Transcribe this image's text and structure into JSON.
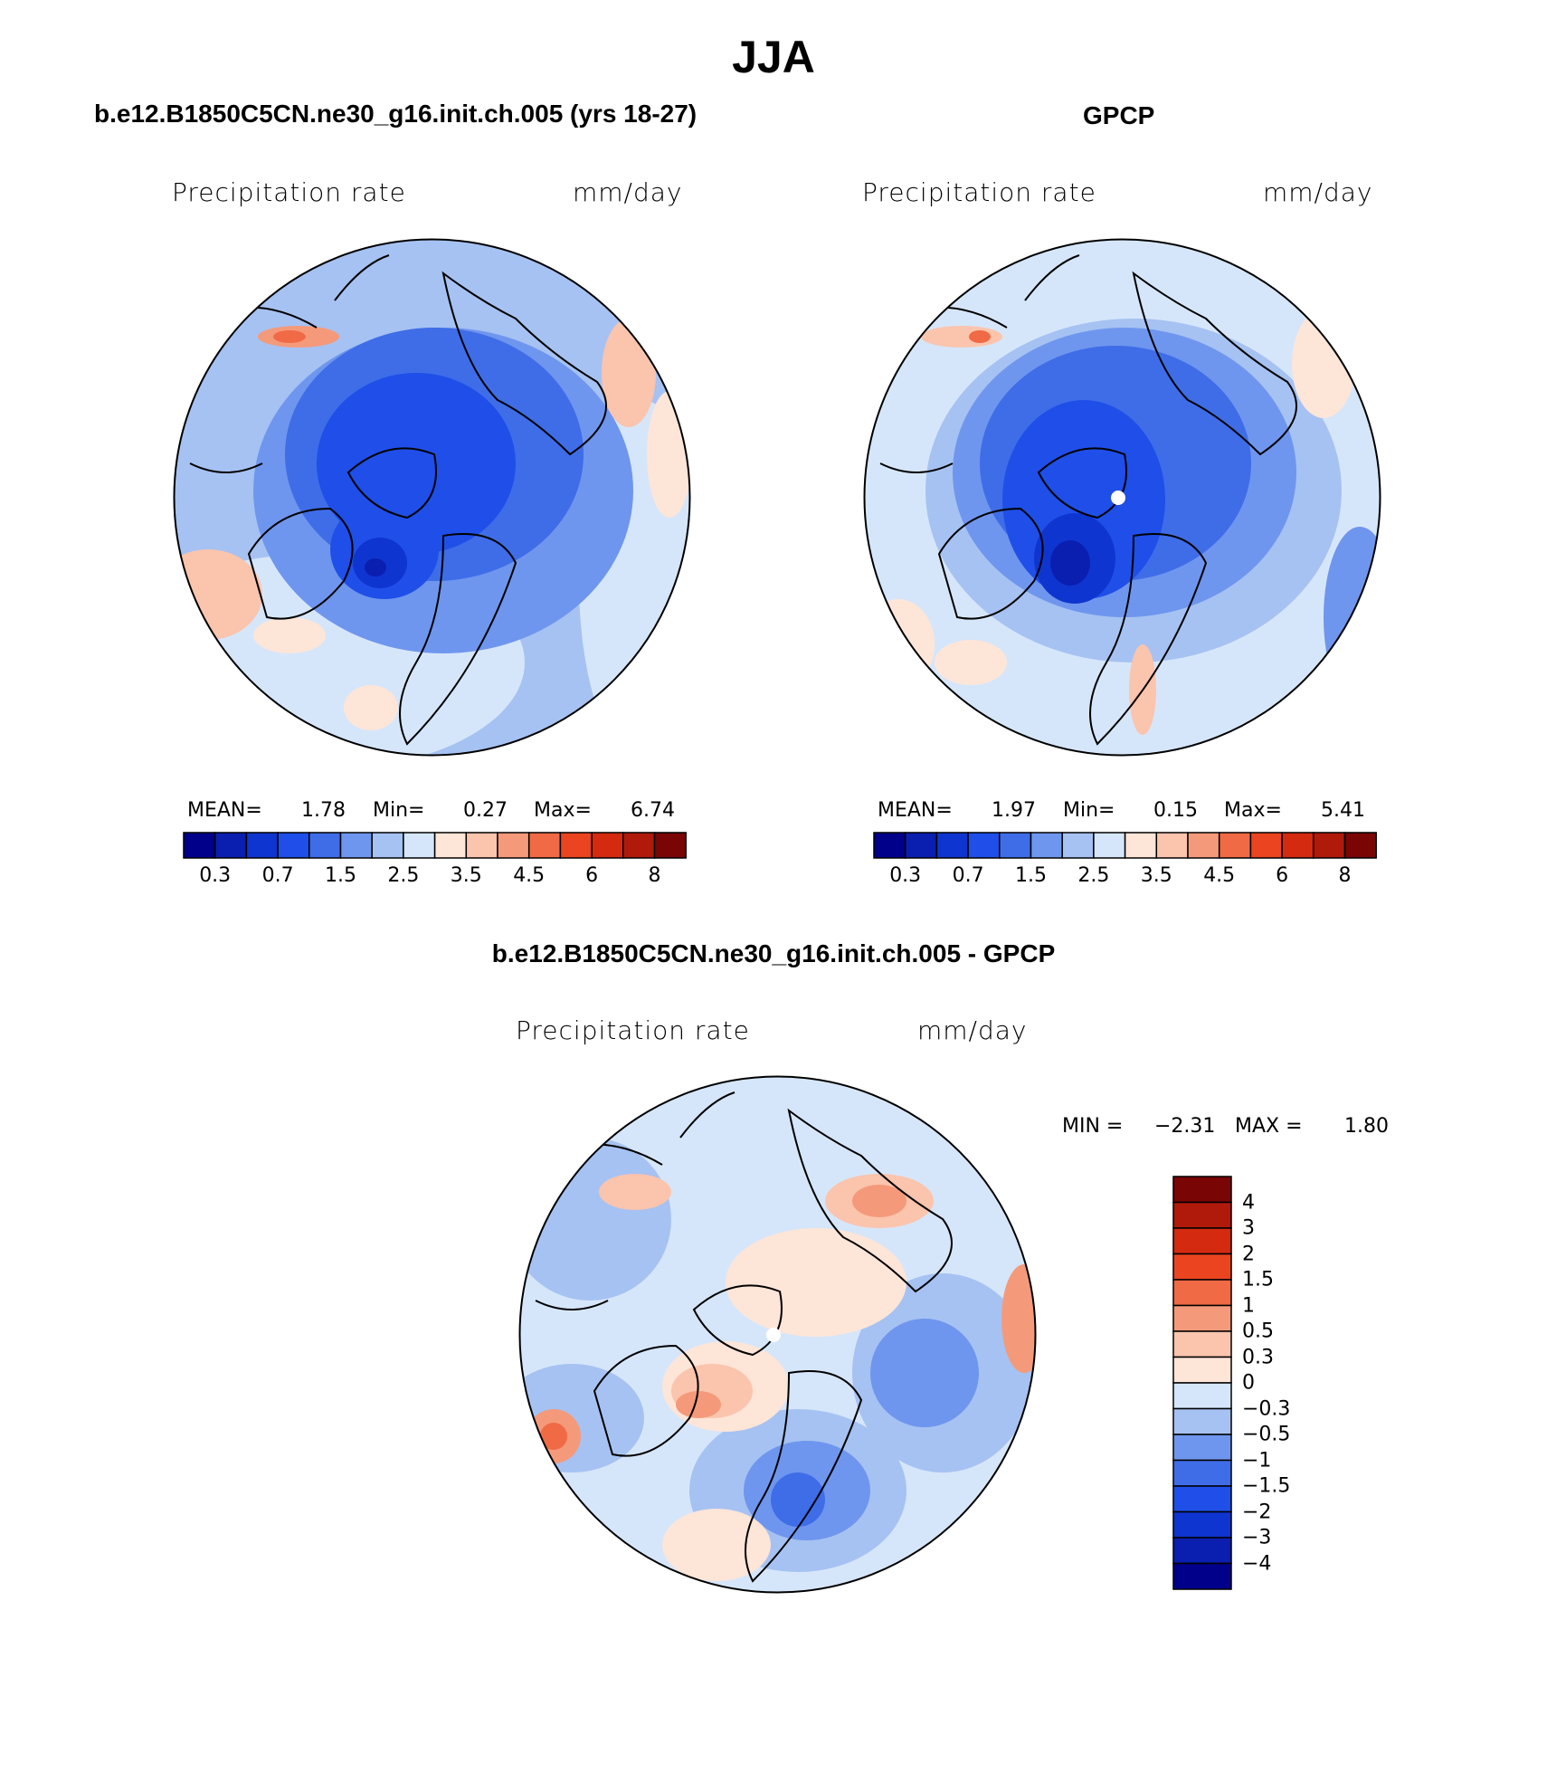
{
  "figure": {
    "title": "JJA",
    "difference_title": "b.e12.B1850C5CN.ne30_g16.init.ch.005 - GPCP"
  },
  "panels": [
    {
      "title": "b.e12.B1850C5CN.ne30_g16.init.ch.005 (yrs 18-27)",
      "variable": "Precipitation rate",
      "units": "mm/day",
      "stats": {
        "mean_label": "MEAN=",
        "mean": "1.78",
        "min_label": "Min=",
        "min": "0.27",
        "max_label": "Max=",
        "max": "6.74"
      }
    },
    {
      "title": "GPCP",
      "variable": "Precipitation rate",
      "units": "mm/day",
      "stats": {
        "mean_label": "MEAN=",
        "mean": "1.97",
        "min_label": "Min=",
        "min": "0.15",
        "max_label": "Max=",
        "max": "5.41"
      }
    },
    {
      "title": "b.e12.B1850C5CN.ne30_g16.init.ch.005 - GPCP",
      "variable": "Precipitation rate",
      "units": "mm/day",
      "stats": {
        "min_label": "MIN =",
        "min": "−2.31",
        "max_label": "MAX =",
        "max": "1.80"
      }
    }
  ],
  "colorbar_abs": {
    "colors": [
      "#00008b",
      "#0a1fb0",
      "#0f35d0",
      "#1f4fe8",
      "#3f6de8",
      "#6f96ee",
      "#a6c2f2",
      "#d6e6fa",
      "#fde5d8",
      "#fbc4ad",
      "#f49a7a",
      "#f06a45",
      "#ea4520",
      "#d42a10",
      "#b01a0a",
      "#7a0505"
    ],
    "labels": [
      "0.3",
      "0.7",
      "1.5",
      "2.5",
      "3.5",
      "4.5",
      "6",
      "8"
    ]
  },
  "colorbar_diff": {
    "colors_top_to_bottom": [
      "#7a0505",
      "#b01a0a",
      "#d42a10",
      "#ea4520",
      "#f06a45",
      "#f49a7a",
      "#fbc4ad",
      "#fde5d8",
      "#d6e6fa",
      "#a6c2f2",
      "#6f96ee",
      "#3f6de8",
      "#1f4fe8",
      "#0f35d0",
      "#0a1fb0",
      "#00008b"
    ],
    "labels_top_to_bottom": [
      "4",
      "3",
      "2",
      "1.5",
      "1",
      "0.5",
      "0.3",
      "0",
      "−0.3",
      "−0.5",
      "−1",
      "−1.5",
      "−2",
      "−3",
      "−4"
    ]
  }
}
